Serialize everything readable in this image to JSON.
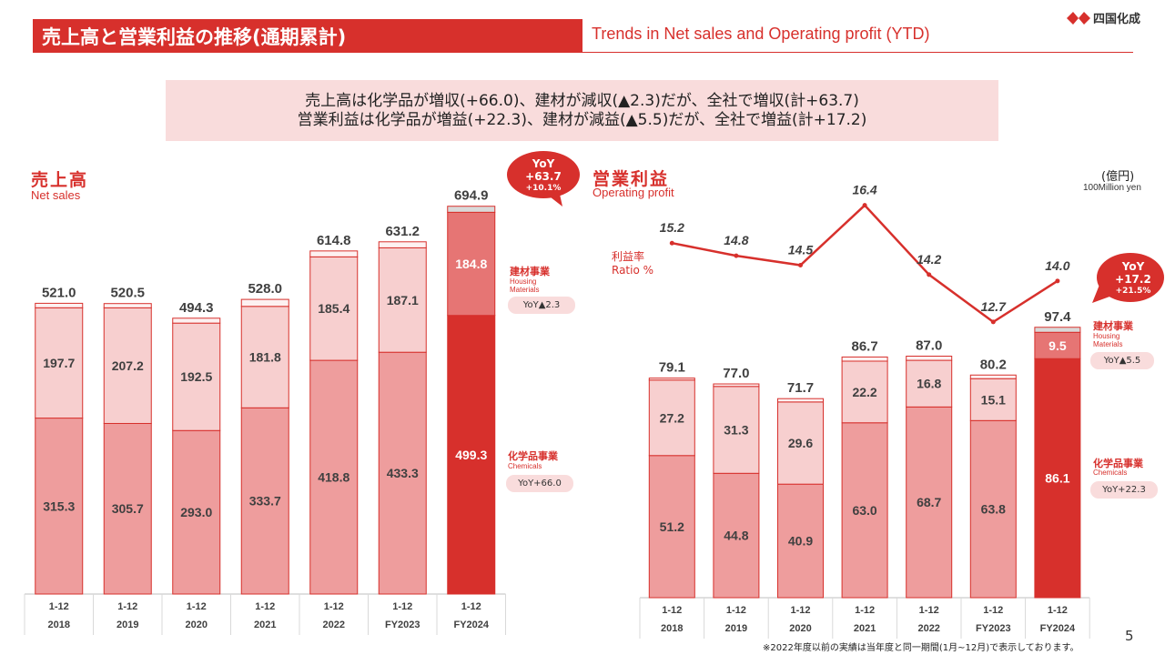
{
  "header": {
    "title_jp": "売上高と営業利益の推移(通期累計)",
    "title_en": "Trends in Net sales and Operating profit (YTD)",
    "logo_text": "四国化成"
  },
  "summary": {
    "line1": "売上高は化学品が増収(+66.0)、建材が減収(▲2.3)だが、全社で増収(計+63.7)",
    "line2": "営業利益は化学品が増益(+22.3)、建材が減益(▲5.5)だが、全社で増益(計+17.2)"
  },
  "unit": {
    "jp": "(億円)",
    "en": "100Million yen"
  },
  "net_sales": {
    "title_jp": "売上高",
    "title_en": "Net sales",
    "yoy_bubble": {
      "l1": "YoY",
      "l2": "+63.7",
      "l3": "+10.1%"
    },
    "housing": {
      "jp": "建材事業",
      "en1": "Housing",
      "en2": "Materials",
      "yoy": "YoY▲2.3"
    },
    "chemicals": {
      "jp": "化学品事業",
      "en": "Chemicals",
      "yoy": "YoY+66.0"
    }
  },
  "operating_profit": {
    "title_jp": "営業利益",
    "title_en": "Operating profit",
    "ratio_jp": "利益率",
    "ratio_en": "Ratio %",
    "yoy_bubble": {
      "l1": "YoY",
      "l2": "+17.2",
      "l3": "+21.5%"
    },
    "housing": {
      "jp": "建材事業",
      "en1": "Housing",
      "en2": "Materials",
      "yoy": "YoY▲5.5"
    },
    "chemicals": {
      "jp": "化学品事業",
      "en": "Chemicals",
      "yoy": "YoY+22.3"
    }
  },
  "colors": {
    "brand": "#d7302c",
    "chem_past": "#ee9d9d",
    "housing_past": "#f7cfcf",
    "other_past": "#fdf1f1",
    "chem_current": "#d7302c",
    "housing_current": "#e67574",
    "other_current": "#d9d9d9",
    "summary_bg": "#f9dcdc"
  },
  "footnote": "※2022年度以前の実績は当年度と同一期間(1月~12月)で表示しております。",
  "page_number": "5",
  "chart_data": [
    {
      "type": "bar",
      "title": "売上高",
      "subtitle": "Net sales",
      "categories": [
        [
          "1-12",
          "2018"
        ],
        [
          "1-12",
          "2019"
        ],
        [
          "1-12",
          "2020"
        ],
        [
          "1-12",
          "2021"
        ],
        [
          "1-12",
          "2022"
        ],
        [
          "1-12",
          "FY2023"
        ],
        [
          "1-12",
          "FY2024"
        ]
      ],
      "series": [
        {
          "name": "化学品事業",
          "values": [
            315.3,
            305.7,
            293.0,
            333.7,
            418.8,
            433.3,
            499.3
          ],
          "labels": [
            "315.3",
            "305.7",
            "293.0",
            "333.7",
            "418.8",
            "433.3",
            "499.3"
          ]
        },
        {
          "name": "建材事業",
          "values": [
            197.7,
            207.2,
            192.5,
            181.8,
            185.4,
            187.1,
            184.8
          ],
          "labels": [
            "197.7",
            "207.2",
            "192.5",
            "181.8",
            "185.4",
            "187.1",
            "184.8"
          ]
        },
        {
          "values": [
            8.0,
            7.6,
            8.8,
            12.5,
            10.6,
            10.8,
            10.8
          ]
        }
      ],
      "totals": [
        521.0,
        520.5,
        494.3,
        528.0,
        614.8,
        631.2,
        694.9
      ],
      "total_labels": [
        "521.0",
        "520.5",
        "494.3",
        "528.0",
        "614.8",
        "631.2",
        "694.9"
      ],
      "ylim": [
        0,
        714
      ],
      "grid": false
    },
    {
      "type": "bar",
      "title": "営業利益",
      "subtitle": "Operating profit",
      "categories": [
        [
          "1-12",
          "2018"
        ],
        [
          "1-12",
          "2019"
        ],
        [
          "1-12",
          "2020"
        ],
        [
          "1-12",
          "2021"
        ],
        [
          "1-12",
          "2022"
        ],
        [
          "1-12",
          "FY2023"
        ],
        [
          "1-12",
          "FY2024"
        ]
      ],
      "series": [
        {
          "name": "化学品事業",
          "values": [
            51.2,
            44.8,
            40.9,
            63.0,
            68.7,
            63.8,
            86.1
          ],
          "labels": [
            "51.2",
            "44.8",
            "40.9",
            "63.0",
            "68.7",
            "63.8",
            "86.1"
          ]
        },
        {
          "name": "建材事業",
          "values": [
            27.2,
            31.3,
            29.6,
            22.2,
            16.8,
            15.1,
            9.5
          ],
          "labels": [
            "27.2",
            "31.3",
            "29.6",
            "22.2",
            "16.8",
            "15.1",
            "9.5"
          ]
        },
        {
          "values": [
            0.7,
            0.9,
            1.2,
            1.5,
            1.5,
            1.3,
            1.8
          ]
        }
      ],
      "totals": [
        79.1,
        77.0,
        71.7,
        86.7,
        87.0,
        80.2,
        97.4
      ],
      "total_labels": [
        "79.1",
        "77.0",
        "71.7",
        "86.7",
        "87.0",
        "80.2",
        "97.4"
      ],
      "ylim": [
        0,
        100.6
      ],
      "grid": false
    },
    {
      "type": "line",
      "title": "利益率",
      "subtitle": "Ratio %",
      "categories": [
        "2018",
        "2019",
        "2020",
        "2021",
        "2022",
        "FY2023",
        "FY2024"
      ],
      "values": [
        15.2,
        14.8,
        14.5,
        16.4,
        14.2,
        12.7,
        14.0
      ],
      "labels": [
        "15.2",
        "14.8",
        "14.5",
        "16.4",
        "14.2",
        "12.7",
        "14.0"
      ],
      "ylim": [
        11.6,
        17.4
      ]
    }
  ]
}
